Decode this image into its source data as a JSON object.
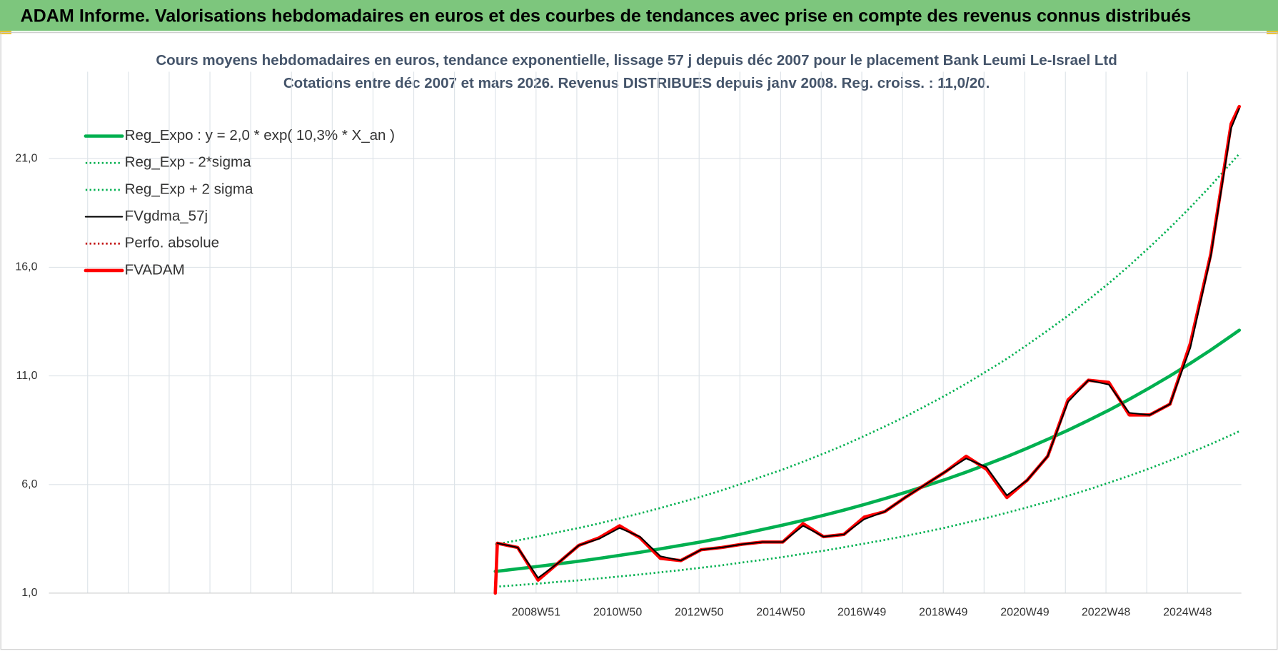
{
  "header": {
    "title": "ADAM Informe. Valorisations hebdomadaires en euros et des courbes de tendances avec prise en compte des revenus connus distribués"
  },
  "chart_data": {
    "type": "line",
    "title": "Cours moyens hebdomadaires en euros, tendance exponentielle, lissage 57 j depuis déc 2007 pour le placement Bank Leumi Le-Israel Ltd",
    "subtitle": "Cotations entre déc 2007 et mars 2026. Revenus DISTRIBUES depuis janv 2008. Reg. croiss. : 11,0/20.",
    "x": [
      2007.95,
      2008.0,
      2008.5,
      2009.0,
      2009.5,
      2010.0,
      2010.5,
      2011.0,
      2011.5,
      2012.0,
      2012.5,
      2013.0,
      2013.5,
      2014.0,
      2014.5,
      2015.0,
      2015.5,
      2016.0,
      2016.5,
      2017.0,
      2017.5,
      2018.0,
      2018.5,
      2019.0,
      2019.5,
      2020.0,
      2020.5,
      2021.0,
      2021.5,
      2022.0,
      2022.5,
      2023.0,
      2023.5,
      2024.0,
      2024.5,
      2025.0,
      2025.5,
      2026.0,
      2026.2
    ],
    "xlim": [
      1997.0,
      2026.25
    ],
    "xticks": [
      {
        "value": 2008.95,
        "label": "2008W51"
      },
      {
        "value": 2010.95,
        "label": "2010W50"
      },
      {
        "value": 2012.95,
        "label": "2012W50"
      },
      {
        "value": 2014.95,
        "label": "2014W50"
      },
      {
        "value": 2016.94,
        "label": "2016W49"
      },
      {
        "value": 2018.94,
        "label": "2018W49"
      },
      {
        "value": 2020.94,
        "label": "2020W49"
      },
      {
        "value": 2022.93,
        "label": "2022W48"
      },
      {
        "value": 2024.93,
        "label": "2024W48"
      }
    ],
    "ylim": [
      1,
      25
    ],
    "yticks": [
      {
        "value": 1,
        "label": "1,0"
      },
      {
        "value": 6,
        "label": "6,0"
      },
      {
        "value": 11,
        "label": "11,0"
      },
      {
        "value": 16,
        "label": "16,0"
      },
      {
        "value": 21,
        "label": "21,0"
      }
    ],
    "grid": true,
    "legend": "top-left",
    "series": [
      {
        "name": "Reg_Expo : y = 2,0 * exp( 10,3% *  X_an )",
        "color": "#00b050",
        "style": "solid-thick",
        "values": [
          2.0,
          2.01,
          2.12,
          2.23,
          2.35,
          2.47,
          2.6,
          2.74,
          2.88,
          3.04,
          3.2,
          3.36,
          3.54,
          3.73,
          3.93,
          4.13,
          4.35,
          4.58,
          4.82,
          5.08,
          5.35,
          5.63,
          5.93,
          6.24,
          6.57,
          6.92,
          7.28,
          7.67,
          8.08,
          8.5,
          8.95,
          9.42,
          9.92,
          10.45,
          11.0,
          11.58,
          12.19,
          12.84,
          13.1
        ]
      },
      {
        "name": "Reg_Exp - 2*sigma",
        "color": "#00b050",
        "style": "dotted",
        "values": [
          1.29,
          1.3,
          1.37,
          1.44,
          1.52,
          1.59,
          1.68,
          1.77,
          1.86,
          1.96,
          2.06,
          2.17,
          2.28,
          2.41,
          2.53,
          2.66,
          2.81,
          2.95,
          3.11,
          3.28,
          3.45,
          3.63,
          3.82,
          4.02,
          4.24,
          4.46,
          4.7,
          4.95,
          5.21,
          5.48,
          5.77,
          6.08,
          6.4,
          6.74,
          7.1,
          7.47,
          7.86,
          8.28,
          8.45
        ]
      },
      {
        "name": "Reg_Exp + 2 sigma",
        "color": "#00b050",
        "style": "dotted",
        "values": [
          3.24,
          3.26,
          3.43,
          3.61,
          3.81,
          4.0,
          4.21,
          4.44,
          4.67,
          4.92,
          5.18,
          5.44,
          5.73,
          6.04,
          6.37,
          6.69,
          7.05,
          7.42,
          7.81,
          8.23,
          8.67,
          9.12,
          9.61,
          10.11,
          10.64,
          11.21,
          11.79,
          12.43,
          13.09,
          13.77,
          14.5,
          15.26,
          16.07,
          16.93,
          17.82,
          18.76,
          19.75,
          20.8,
          21.22
        ]
      },
      {
        "name": "FVgdma_57j",
        "color": "#000000",
        "style": "solid",
        "values": [
          null,
          3.3,
          3.1,
          1.7,
          2.4,
          3.2,
          3.5,
          4.0,
          3.6,
          2.7,
          2.5,
          3.0,
          3.1,
          3.25,
          3.35,
          3.35,
          4.1,
          3.6,
          3.7,
          4.4,
          4.75,
          5.4,
          6.0,
          6.6,
          7.2,
          6.8,
          5.5,
          6.2,
          7.3,
          9.8,
          10.8,
          10.6,
          9.3,
          9.2,
          9.7,
          12.3,
          16.5,
          22.4,
          23.3
        ]
      },
      {
        "name": "Perfo. absolue",
        "color": "#c00000",
        "style": "dotted",
        "values": [
          1.0,
          3.3,
          3.1,
          1.6,
          2.4,
          3.2,
          3.55,
          4.1,
          3.55,
          2.6,
          2.5,
          3.0,
          3.1,
          3.25,
          3.35,
          3.35,
          4.2,
          3.6,
          3.7,
          4.5,
          4.75,
          5.4,
          6.0,
          6.6,
          7.3,
          6.7,
          5.4,
          6.2,
          7.3,
          9.9,
          10.8,
          10.7,
          9.2,
          9.2,
          9.7,
          12.5,
          16.6,
          22.6,
          23.4
        ]
      },
      {
        "name": "FVADAM",
        "color": "#ff0000",
        "style": "solid-thick",
        "values": [
          1.0,
          3.3,
          3.1,
          1.6,
          2.4,
          3.2,
          3.55,
          4.1,
          3.55,
          2.6,
          2.5,
          3.0,
          3.1,
          3.25,
          3.35,
          3.35,
          4.2,
          3.6,
          3.7,
          4.5,
          4.75,
          5.4,
          6.0,
          6.6,
          7.3,
          6.7,
          5.4,
          6.2,
          7.3,
          9.9,
          10.8,
          10.7,
          9.2,
          9.2,
          9.7,
          12.5,
          16.6,
          22.6,
          23.4
        ]
      }
    ]
  }
}
